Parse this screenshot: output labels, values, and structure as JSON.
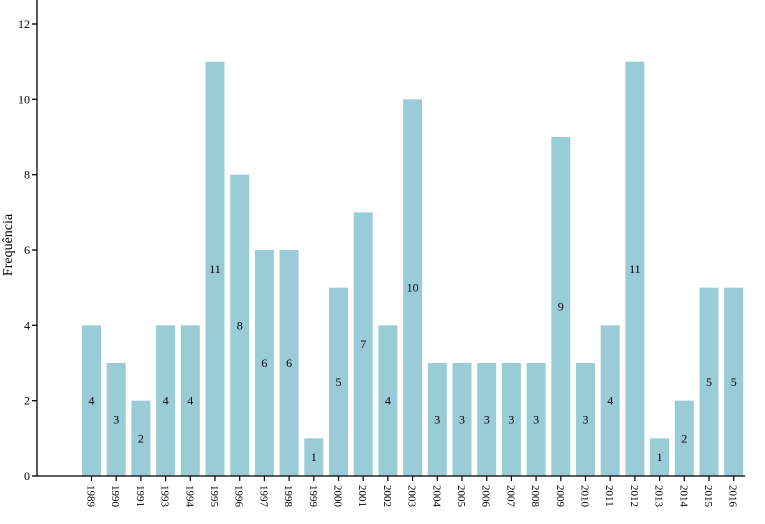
{
  "chart_data": {
    "type": "bar",
    "ylabel": "Frequência",
    "xlabel": "",
    "ylim": [
      0,
      12
    ],
    "yticks": [
      0,
      2,
      4,
      6,
      8,
      10,
      12
    ],
    "grid": false,
    "bar_color": "#9accd8",
    "categories": [
      "1989",
      "1990",
      "1991",
      "1993",
      "1994",
      "1995",
      "1996",
      "1997",
      "1998",
      "1999",
      "2000",
      "2001",
      "2002",
      "2003",
      "2004",
      "2005",
      "2006",
      "2007",
      "2008",
      "2009",
      "2010",
      "2011",
      "2012",
      "2013",
      "2014",
      "2015",
      "2016"
    ],
    "values": [
      4,
      3,
      2,
      4,
      4,
      11,
      8,
      6,
      6,
      1,
      5,
      7,
      4,
      10,
      3,
      3,
      3,
      3,
      3,
      9,
      3,
      4,
      11,
      1,
      2,
      5,
      5
    ]
  }
}
